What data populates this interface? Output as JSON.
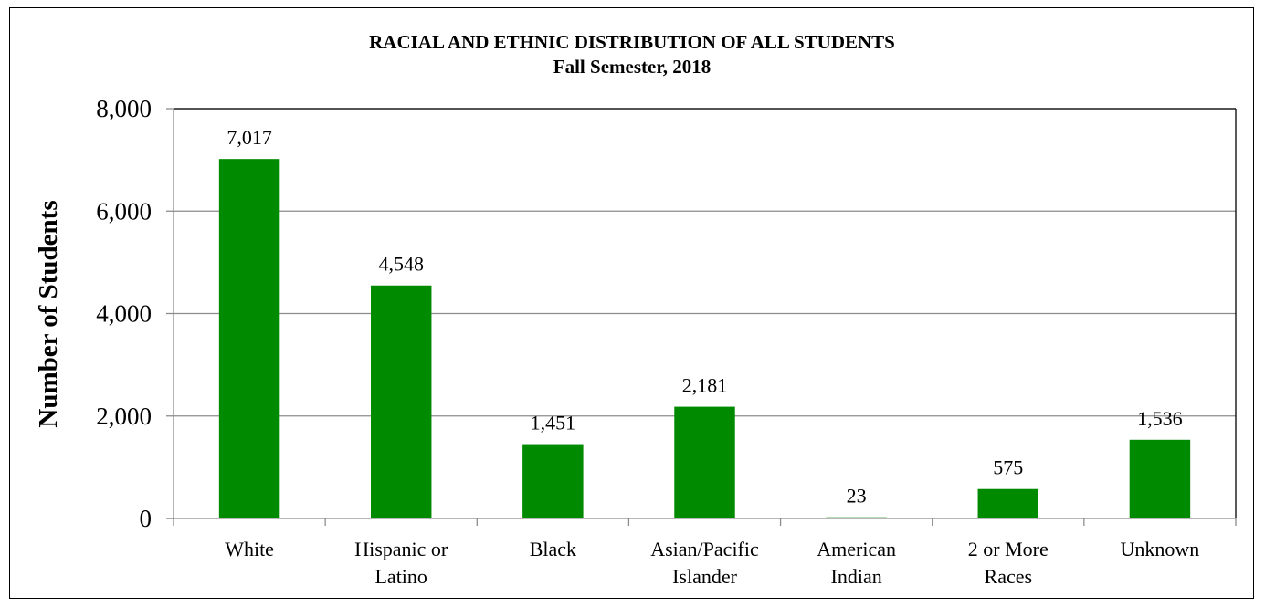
{
  "chart_data": {
    "type": "bar",
    "title": "RACIAL AND ETHNIC DISTRIBUTION OF ALL STUDENTS",
    "subtitle": "Fall Semester, 2018",
    "xlabel": "",
    "ylabel": "Number of Students",
    "categories": [
      [
        "White"
      ],
      [
        "Hispanic or",
        "Latino"
      ],
      [
        "Black"
      ],
      [
        "Asian/Pacific",
        "Islander"
      ],
      [
        "American",
        "Indian"
      ],
      [
        "2 or More",
        "Races"
      ],
      [
        "Unknown"
      ]
    ],
    "values": [
      7017,
      4548,
      1451,
      2181,
      23,
      575,
      1536
    ],
    "data_labels": [
      "7,017",
      "4,548",
      "1,451",
      "2,181",
      "23",
      "575",
      "1,536"
    ],
    "ylim": [
      0,
      8000
    ],
    "yticks": [
      0,
      2000,
      4000,
      6000,
      8000
    ],
    "ytick_labels": [
      "0",
      "2,000",
      "4,000",
      "6,000",
      "8,000"
    ],
    "grid": true,
    "legend": "none",
    "bar_color": "#008a00",
    "grid_color": "#8c8c8c"
  }
}
